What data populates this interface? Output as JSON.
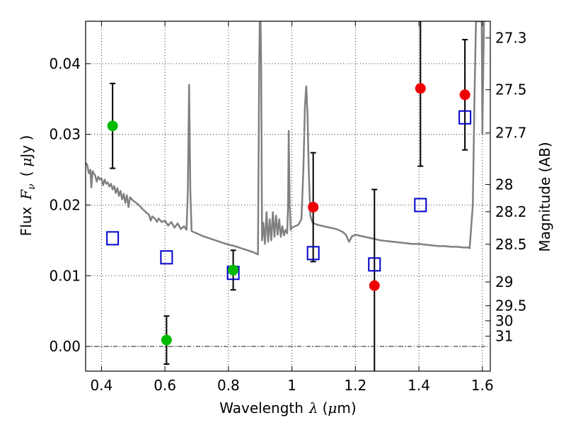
{
  "chart_data": {
    "type": "scatter",
    "xlabel": {
      "prefix": "Wavelength",
      "symbol": "λ",
      "unit_open": "(",
      "unit_mu": "μ",
      "unit_rest": "m)"
    },
    "ylabel": {
      "prefix": "Flux",
      "symbol": "F",
      "subscript": "ν",
      "unit_open": "(",
      "unit_mu": "μ",
      "unit_rest": "Jy )"
    },
    "y2label": "Magnitude (AB)",
    "xlim": [
      0.35,
      1.625
    ],
    "ylim": [
      -0.0035,
      0.046
    ],
    "grid": true,
    "x_ticks": [
      {
        "v": 0.4,
        "label": "0.4"
      },
      {
        "v": 0.6,
        "label": "0.6"
      },
      {
        "v": 0.8,
        "label": "0.8"
      },
      {
        "v": 1.0,
        "label": "1"
      },
      {
        "v": 1.2,
        "label": "1.2"
      },
      {
        "v": 1.4,
        "label": "1.4"
      },
      {
        "v": 1.6,
        "label": "1.6"
      }
    ],
    "y_ticks": [
      {
        "v": 0.0,
        "label": "0.00"
      },
      {
        "v": 0.01,
        "label": "0.01"
      },
      {
        "v": 0.02,
        "label": "0.02"
      },
      {
        "v": 0.03,
        "label": "0.03"
      },
      {
        "v": 0.04,
        "label": "0.04"
      }
    ],
    "mag_ticks": [
      {
        "mag": 27.3,
        "label": "27.3"
      },
      {
        "mag": 27.5,
        "label": "27.5"
      },
      {
        "mag": 27.7,
        "label": "27.7"
      },
      {
        "mag": 28.0,
        "label": "28"
      },
      {
        "mag": 28.2,
        "label": "28.2"
      },
      {
        "mag": 28.5,
        "label": "28.5"
      },
      {
        "mag": 29.0,
        "label": "29"
      },
      {
        "mag": 29.5,
        "label": "29.5"
      },
      {
        "mag": 30.0,
        "label": "30"
      },
      {
        "mag": 31.0,
        "label": "31"
      }
    ],
    "model_sed": {
      "name": "",
      "color": "#808080",
      "points": [
        [
          0.35,
          0.026
        ],
        [
          0.355,
          0.0257
        ],
        [
          0.36,
          0.0245
        ],
        [
          0.365,
          0.025
        ],
        [
          0.368,
          0.0225
        ],
        [
          0.372,
          0.0248
        ],
        [
          0.38,
          0.0242
        ],
        [
          0.385,
          0.0233
        ],
        [
          0.39,
          0.024
        ],
        [
          0.395,
          0.0236
        ],
        [
          0.4,
          0.0238
        ],
        [
          0.405,
          0.0228
        ],
        [
          0.41,
          0.0236
        ],
        [
          0.415,
          0.023
        ],
        [
          0.42,
          0.0232
        ],
        [
          0.425,
          0.0226
        ],
        [
          0.43,
          0.023
        ],
        [
          0.435,
          0.0222
        ],
        [
          0.44,
          0.0227
        ],
        [
          0.445,
          0.0217
        ],
        [
          0.45,
          0.0224
        ],
        [
          0.455,
          0.0213
        ],
        [
          0.46,
          0.022
        ],
        [
          0.465,
          0.0208
        ],
        [
          0.47,
          0.0216
        ],
        [
          0.475,
          0.0203
        ],
        [
          0.48,
          0.0214
        ],
        [
          0.485,
          0.0197
        ],
        [
          0.49,
          0.0211
        ],
        [
          0.5,
          0.0206
        ],
        [
          0.51,
          0.0203
        ],
        [
          0.52,
          0.0199
        ],
        [
          0.53,
          0.0194
        ],
        [
          0.54,
          0.019
        ],
        [
          0.55,
          0.0186
        ],
        [
          0.555,
          0.0178
        ],
        [
          0.56,
          0.0184
        ],
        [
          0.57,
          0.018
        ],
        [
          0.575,
          0.0176
        ],
        [
          0.58,
          0.0181
        ],
        [
          0.59,
          0.0176
        ],
        [
          0.6,
          0.0178
        ],
        [
          0.61,
          0.0171
        ],
        [
          0.62,
          0.0176
        ],
        [
          0.63,
          0.0168
        ],
        [
          0.64,
          0.0174
        ],
        [
          0.65,
          0.0166
        ],
        [
          0.66,
          0.017
        ],
        [
          0.668,
          0.0165
        ],
        [
          0.672,
          0.022
        ],
        [
          0.676,
          0.037
        ],
        [
          0.68,
          0.022
        ],
        [
          0.684,
          0.0163
        ],
        [
          0.7,
          0.016
        ],
        [
          0.72,
          0.0156
        ],
        [
          0.74,
          0.0153
        ],
        [
          0.76,
          0.015
        ],
        [
          0.78,
          0.0147
        ],
        [
          0.8,
          0.0144
        ],
        [
          0.82,
          0.0142
        ],
        [
          0.84,
          0.0139
        ],
        [
          0.86,
          0.0136
        ],
        [
          0.88,
          0.0133
        ],
        [
          0.893,
          0.013
        ],
        [
          0.897,
          0.04
        ],
        [
          0.9,
          0.05
        ],
        [
          0.903,
          0.04
        ],
        [
          0.906,
          0.015
        ],
        [
          0.91,
          0.0175
        ],
        [
          0.915,
          0.0145
        ],
        [
          0.92,
          0.019
        ],
        [
          0.925,
          0.0148
        ],
        [
          0.93,
          0.018
        ],
        [
          0.935,
          0.015
        ],
        [
          0.94,
          0.019
        ],
        [
          0.945,
          0.0155
        ],
        [
          0.95,
          0.0185
        ],
        [
          0.955,
          0.0158
        ],
        [
          0.96,
          0.018
        ],
        [
          0.965,
          0.0155
        ],
        [
          0.97,
          0.017
        ],
        [
          0.975,
          0.0157
        ],
        [
          0.98,
          0.0165
        ],
        [
          0.985,
          0.016
        ],
        [
          0.988,
          0.02
        ],
        [
          0.99,
          0.0305
        ],
        [
          0.993,
          0.02
        ],
        [
          0.996,
          0.0165
        ],
        [
          1.0,
          0.0168
        ],
        [
          1.01,
          0.017
        ],
        [
          1.02,
          0.0172
        ],
        [
          1.03,
          0.018
        ],
        [
          1.036,
          0.025
        ],
        [
          1.041,
          0.034
        ],
        [
          1.045,
          0.0368
        ],
        [
          1.049,
          0.033
        ],
        [
          1.053,
          0.025
        ],
        [
          1.058,
          0.0185
        ],
        [
          1.065,
          0.0175
        ],
        [
          1.08,
          0.0172
        ],
        [
          1.1,
          0.017
        ],
        [
          1.12,
          0.0168
        ],
        [
          1.14,
          0.0166
        ],
        [
          1.16,
          0.0162
        ],
        [
          1.17,
          0.0158
        ],
        [
          1.18,
          0.0148
        ],
        [
          1.185,
          0.0152
        ],
        [
          1.19,
          0.0156
        ],
        [
          1.2,
          0.0158
        ],
        [
          1.22,
          0.0156
        ],
        [
          1.24,
          0.0154
        ],
        [
          1.26,
          0.0152
        ],
        [
          1.28,
          0.015
        ],
        [
          1.3,
          0.0149
        ],
        [
          1.32,
          0.0148
        ],
        [
          1.34,
          0.0147
        ],
        [
          1.36,
          0.0146
        ],
        [
          1.38,
          0.0145
        ],
        [
          1.4,
          0.0145
        ],
        [
          1.42,
          0.0144
        ],
        [
          1.44,
          0.0143
        ],
        [
          1.46,
          0.0142
        ],
        [
          1.48,
          0.0142
        ],
        [
          1.5,
          0.0141
        ],
        [
          1.52,
          0.0141
        ],
        [
          1.54,
          0.014
        ],
        [
          1.555,
          0.014
        ],
        [
          1.56,
          0.0139
        ],
        [
          1.57,
          0.02
        ],
        [
          1.575,
          0.035
        ],
        [
          1.58,
          0.046
        ],
        [
          1.59,
          0.046
        ],
        [
          1.595,
          0.046
        ],
        [
          1.598,
          0.046
        ],
        [
          1.6,
          0.03
        ],
        [
          1.605,
          0.046
        ]
      ]
    },
    "detections": {
      "green": {
        "color": "#00bb00",
        "points": [
          {
            "x": 0.435,
            "y": 0.0312,
            "yerr": 0.006
          },
          {
            "x": 0.605,
            "y": 0.0009,
            "yerr": 0.0034
          },
          {
            "x": 0.815,
            "y": 0.0108,
            "yerr": 0.0028
          }
        ]
      },
      "red": {
        "color": "#ee0000",
        "points": [
          {
            "x": 1.067,
            "y": 0.0197,
            "yerr": 0.0077
          },
          {
            "x": 1.26,
            "y": 0.0086,
            "yerr": 0.0136
          },
          {
            "x": 1.405,
            "y": 0.0365,
            "yerr": 0.011
          },
          {
            "x": 1.545,
            "y": 0.0356,
            "yerr": 0.0078
          }
        ]
      }
    },
    "model_points": {
      "color": "#0000cc",
      "points": [
        {
          "x": 0.435,
          "y": 0.0153
        },
        {
          "x": 0.605,
          "y": 0.0126
        },
        {
          "x": 0.815,
          "y": 0.0104
        },
        {
          "x": 1.067,
          "y": 0.0132
        },
        {
          "x": 1.26,
          "y": 0.0116
        },
        {
          "x": 1.405,
          "y": 0.02
        },
        {
          "x": 1.545,
          "y": 0.0324
        }
      ]
    }
  }
}
